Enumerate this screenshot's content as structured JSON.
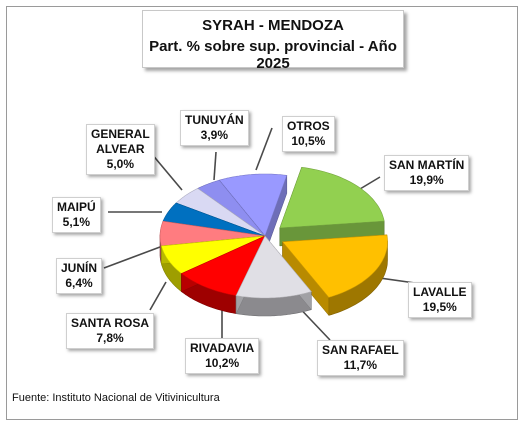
{
  "chart_data": {
    "type": "pie",
    "title": "SYRAH - MENDOZA",
    "subtitle": "Part. % sobre sup. provincial - Año 2025",
    "slices": [
      {
        "name": "SAN MARTÍN",
        "value": 19.9,
        "label": "19,9%",
        "color": "#92d050",
        "exploded": true
      },
      {
        "name": "LAVALLE",
        "value": 19.5,
        "label": "19,5%",
        "color": "#ffc000",
        "exploded": true
      },
      {
        "name": "SAN RAFAEL",
        "value": 11.7,
        "label": "11,7%",
        "color": "#e0dfe5",
        "exploded": false
      },
      {
        "name": "RIVADAVIA",
        "value": 10.2,
        "label": "10,2%",
        "color": "#ff0000",
        "exploded": false
      },
      {
        "name": "SANTA ROSA",
        "value": 7.8,
        "label": "7,8%",
        "color": "#ffff00",
        "exploded": false
      },
      {
        "name": "JUNÍN",
        "value": 6.4,
        "label": "6,4%",
        "color": "#ff7c80",
        "exploded": false
      },
      {
        "name": "MAIPÚ",
        "value": 5.1,
        "label": "5,1%",
        "color": "#0070c0",
        "exploded": false
      },
      {
        "name": "GENERAL ALVEAR",
        "value": 5.0,
        "label": "5,0%",
        "color": "#d9d9f3",
        "exploded": false
      },
      {
        "name": "TUNUYÁN",
        "value": 3.9,
        "label": "3,9%",
        "color": "#8e8ef0",
        "exploded": false
      },
      {
        "name": "OTROS",
        "value": 10.5,
        "label": "10,5%",
        "color": "#9999ff",
        "exploded": false
      }
    ],
    "legend": "none",
    "style": "3d-exploded-pie"
  },
  "labels": {
    "san_martin": {
      "line1": "SAN MARTÍN",
      "line2": "19,9%"
    },
    "lavalle": {
      "line1": "LAVALLE",
      "line2": "19,5%"
    },
    "san_rafael": {
      "line1": "SAN RAFAEL",
      "line2": "11,7%"
    },
    "rivadavia": {
      "line1": "RIVADAVIA",
      "line2": "10,2%"
    },
    "santa_rosa": {
      "line1": "SANTA ROSA",
      "line2": "7,8%"
    },
    "junin": {
      "line1": "JUNÍN",
      "line2": "6,4%"
    },
    "maipu": {
      "line1": "MAIPÚ",
      "line2": "5,1%"
    },
    "general_alvear": {
      "line1": "GENERAL",
      "line2": "ALVEAR",
      "line3": "5,0%"
    },
    "tunuyan": {
      "line1": "TUNUYÁN",
      "line2": "3,9%"
    },
    "otros": {
      "line1": "OTROS",
      "line2": "10,5%"
    }
  },
  "source": "Fuente: Instituto Nacional de Vitivinicultura"
}
